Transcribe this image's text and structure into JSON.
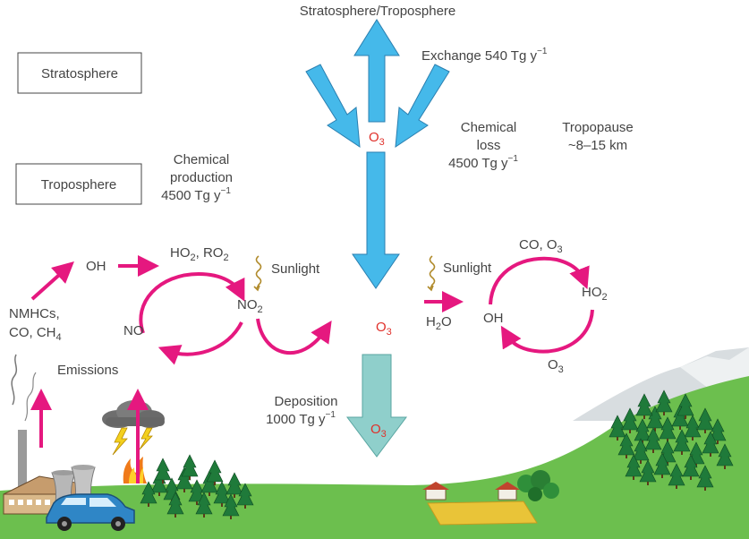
{
  "labels": {
    "strat_trop_title": "Stratosphere/Troposphere",
    "exchange": "Exchange 540 Tg y",
    "exchange_sup": "−1",
    "stratosphere": "Stratosphere",
    "troposphere": "Troposphere",
    "chem_prod_1": "Chemical",
    "chem_prod_2": "production",
    "chem_prod_3": "4500 Tg y",
    "chem_prod_sup": "−1",
    "chem_loss_1": "Chemical",
    "chem_loss_2": "loss",
    "chem_loss_3": "4500 Tg y",
    "chem_loss_sup": "−1",
    "tropopause_1": "Tropopause",
    "tropopause_2": "~8–15 km",
    "oh_left": "OH",
    "ho2_ro2_a": "HO",
    "ho2_ro2_sub": "2",
    "ho2_ro2_b": ", RO",
    "ho2_ro2_sub2": "2",
    "sunlight_left": "Sunlight",
    "no2_a": "NO",
    "no2_sub": "2",
    "no": "NO",
    "nmhc_1": "NMHCs,",
    "nmhc_2": "CO, CH",
    "nmhc_sub": "4",
    "emissions": "Emissions",
    "o3_top_a": "O",
    "o3_top_sub": "3",
    "o3_mid_a": "O",
    "o3_mid_sub": "3",
    "o3_dep_a": "O",
    "o3_dep_sub": "3",
    "sunlight_right": "Sunlight",
    "h2o_a": "H",
    "h2o_sub": "2",
    "h2o_b": "O",
    "oh_right": "OH",
    "co_o3_a": "CO, O",
    "co_o3_sub": "3",
    "ho2_right_a": "HO",
    "ho2_right_sub": "2",
    "o3_right_a": "O",
    "o3_right_sub": "3",
    "deposition_1": "Deposition",
    "deposition_2": "1000 Tg y",
    "deposition_sup": "−1"
  },
  "colors": {
    "blue_arrow": "#45b9ea",
    "pink_arrow": "#e5187f",
    "teal_arrow": "#8fcfcb",
    "ozone_red": "#e0302a",
    "grass": "#6cbf4e",
    "trees": "#1f7a3a"
  },
  "icons": [
    "sunlight-squiggle-icon",
    "storm-cloud-icon",
    "lightning-icon",
    "fire-icon",
    "car-icon",
    "factory-icon",
    "house-icon",
    "tree-icon",
    "mountain-icon"
  ]
}
